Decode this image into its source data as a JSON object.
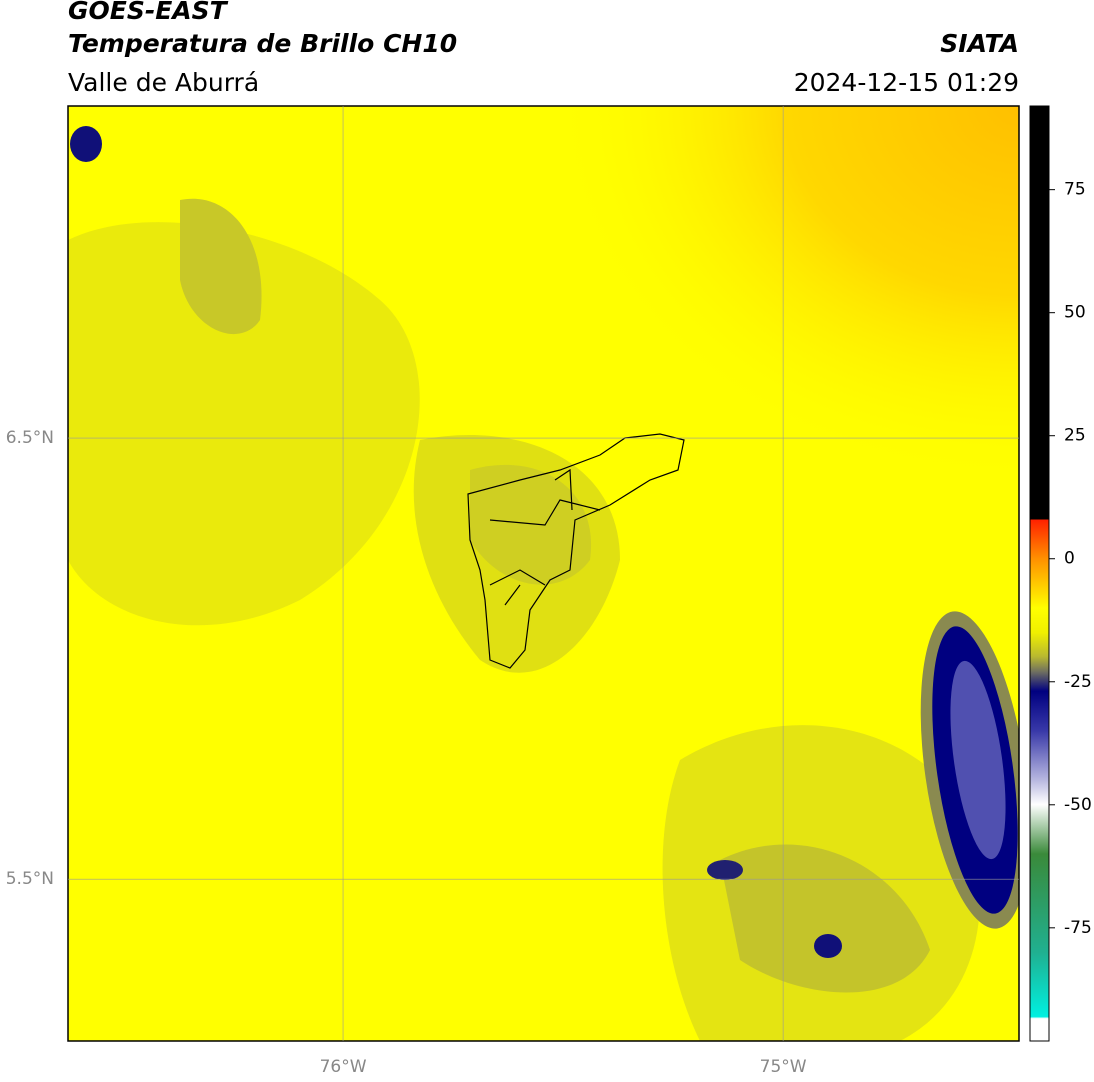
{
  "header": {
    "title": "GOES-EAST",
    "subtitle": "Temperatura de Brillo CH10",
    "region": "Valle de Aburrá",
    "source": "SIATA",
    "datetime": "2024-12-15 01:29"
  },
  "map": {
    "lonlim": [
      -76.625,
      -74.464
    ],
    "latlim": [
      5.133,
      7.253
    ],
    "lonticks": [
      {
        "value": -76,
        "label": "76°W"
      },
      {
        "value": -75,
        "label": "75°W"
      }
    ],
    "latticks": [
      {
        "value": 6.5,
        "label": "6.5°N"
      },
      {
        "value": 5.5,
        "label": "5.5°N"
      }
    ]
  },
  "colorbar": {
    "lim": [
      -98,
      92
    ],
    "ticks": [
      75,
      50,
      25,
      0,
      -25,
      -50,
      -75
    ]
  }
}
